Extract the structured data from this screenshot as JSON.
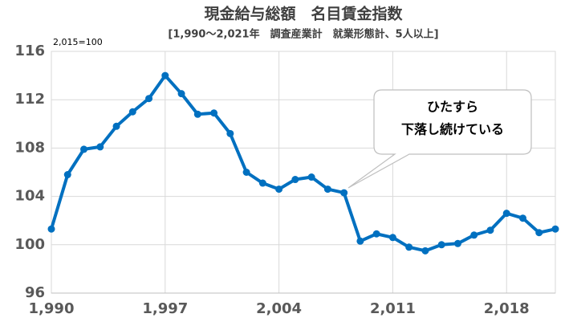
{
  "chart_data": {
    "type": "line",
    "title": "現金給与総額　名目賃金指数",
    "subtitle": "[1,990～2,021年　調査産業計　就業形態計、5人以上]",
    "unit_label": "2,015=100",
    "annotation": [
      "ひたすら",
      "下落し続けている"
    ],
    "x": [
      1990,
      1991,
      1992,
      1993,
      1994,
      1995,
      1996,
      1997,
      1998,
      1999,
      2000,
      2001,
      2002,
      2003,
      2004,
      2005,
      2006,
      2007,
      2008,
      2009,
      2010,
      2011,
      2012,
      2013,
      2014,
      2015,
      2016,
      2017,
      2018,
      2019,
      2020,
      2021
    ],
    "series": [
      {
        "color": "#0070c0",
        "values": [
          101.3,
          105.8,
          107.9,
          108.1,
          109.8,
          111.0,
          112.1,
          114.0,
          112.5,
          110.8,
          110.9,
          109.2,
          106.0,
          105.1,
          104.6,
          105.4,
          105.6,
          104.6,
          104.3,
          100.3,
          100.9,
          100.6,
          99.8,
          99.5,
          100.0,
          100.1,
          100.8,
          101.2,
          102.6,
          102.2,
          101.0,
          101.3
        ]
      }
    ],
    "xlim": [
      1990,
      2021
    ],
    "xticks": [
      {
        "value": 1990,
        "label": "1,990"
      },
      {
        "value": 1997,
        "label": "1,997"
      },
      {
        "value": 2004,
        "label": "2,004"
      },
      {
        "value": 2011,
        "label": "2,011"
      },
      {
        "value": 2018,
        "label": "2,018"
      }
    ],
    "ylim": [
      96,
      116
    ],
    "yticks": [
      96,
      100,
      104,
      108,
      112,
      116
    ],
    "grid": true
  }
}
